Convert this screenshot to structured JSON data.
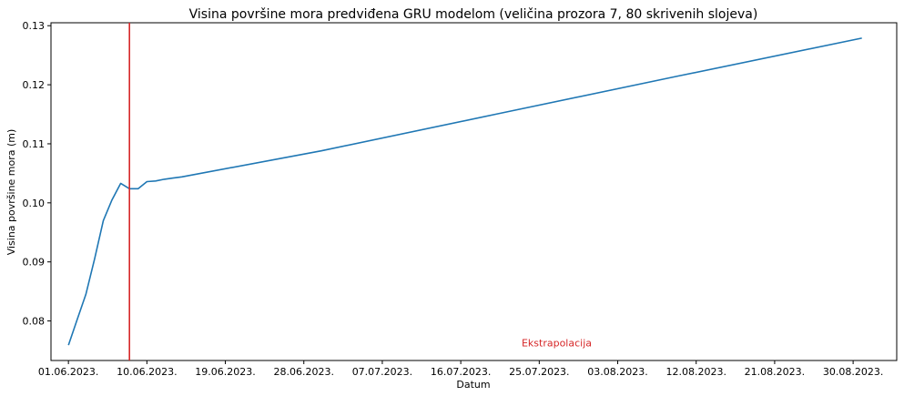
{
  "chart_data": {
    "type": "line",
    "title": "Visina površine mora predviđena GRU modelom (veličina prozora 7, 80 skrivenih slojeva)",
    "xlabel": "Datum",
    "ylabel": "Visina površine mora (m)",
    "x_ticks": [
      "01.06.2023.",
      "10.06.2023.",
      "19.06.2023.",
      "28.06.2023.",
      "07.07.2023.",
      "16.07.2023.",
      "25.07.2023.",
      "03.08.2023.",
      "12.08.2023.",
      "21.08.2023.",
      "30.08.2023."
    ],
    "y_ticks": [
      "0.08",
      "0.09",
      "0.10",
      "0.11",
      "0.12",
      "0.13"
    ],
    "xlim": [
      "2023-05-30",
      "2023-09-04"
    ],
    "ylim": [
      0.0733,
      0.1305
    ],
    "grid": false,
    "series": [
      {
        "color": "#1f77b4",
        "x": [
          "2023-06-01",
          "2023-06-02",
          "2023-06-03",
          "2023-06-04",
          "2023-06-05",
          "2023-06-06",
          "2023-06-07",
          "2023-06-08",
          "2023-06-09",
          "2023-06-10",
          "2023-06-11",
          "2023-06-12",
          "2023-06-13",
          "2023-06-14",
          "2023-06-30",
          "2023-07-20",
          "2023-08-10",
          "2023-08-31"
        ],
        "y": [
          0.0759,
          0.0802,
          0.0845,
          0.0905,
          0.097,
          0.1005,
          0.1033,
          0.1024,
          0.1024,
          0.1036,
          0.1037,
          0.104,
          0.1042,
          0.1044,
          0.1088,
          0.115,
          0.1215,
          0.1279
        ]
      }
    ],
    "vline": {
      "x": "2023-06-08",
      "color": "#d62728"
    },
    "annotation": {
      "text": "Ekstrapolacija",
      "x": "2023-07-27",
      "y": 0.0757
    }
  }
}
